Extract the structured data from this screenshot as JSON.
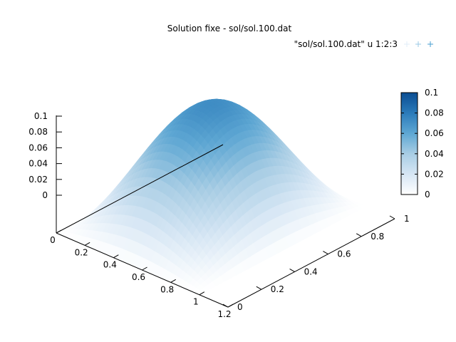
{
  "chart_data": {
    "type": "surface",
    "title": "Solution fixe - sol/sol.100.dat",
    "legend": {
      "label": "\"sol/sol.100.dat\" u 1:2:3",
      "position": "top-right"
    },
    "colormap": [
      "#ffffff",
      "#d6e6f4",
      "#a8cde4",
      "#5ea7d3",
      "#2b7bba",
      "#0b4d92"
    ],
    "x_axis": {
      "ticks": [
        "0",
        "0.2",
        "0.4",
        "0.6",
        "0.8",
        "1",
        "1.2"
      ],
      "range": [
        0,
        1.2
      ]
    },
    "y_axis": {
      "ticks": [
        "0",
        "0.2",
        "0.4",
        "0.6",
        "0.8",
        "1"
      ],
      "range": [
        0,
        1
      ]
    },
    "z_axis": {
      "ticks": [
        "0",
        "0.02",
        "0.04",
        "0.06",
        "0.08",
        "0.1"
      ],
      "range": [
        0,
        0.1
      ]
    },
    "colorbar": {
      "ticks": [
        "0",
        "0.02",
        "0.04",
        "0.06",
        "0.08",
        "0.1"
      ],
      "range": [
        0,
        0.1
      ]
    },
    "surface": {
      "domain_x": [
        0,
        1
      ],
      "domain_y": [
        0,
        1
      ],
      "peak_value": 0.1,
      "grid": 41
    }
  }
}
